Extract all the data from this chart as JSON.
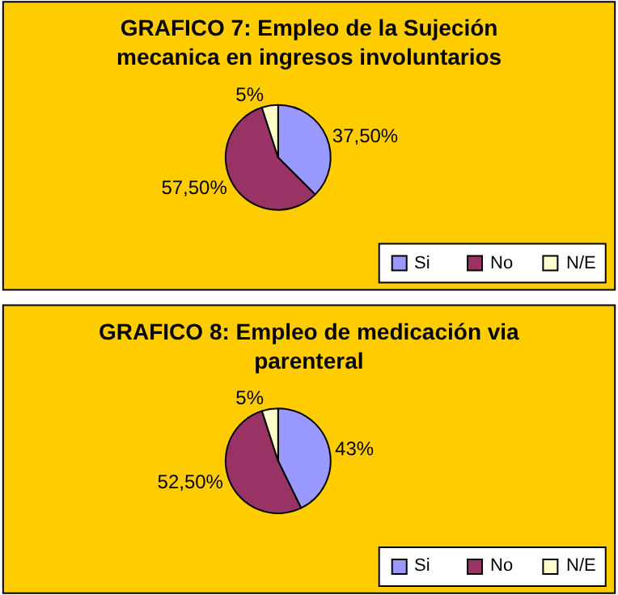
{
  "chart_data": [
    {
      "type": "pie",
      "title": "GRAFICO 7: Empleo de la Sujeción mecanica en ingresos involuntarios",
      "categories": [
        "Si",
        "No",
        "N/E"
      ],
      "values": [
        37.5,
        57.5,
        5
      ],
      "colors": [
        "#9999ff",
        "#993366",
        "#ffffcc"
      ],
      "value_labels": [
        "37,50%",
        "57,50%",
        "5%"
      ],
      "legend": "bottom right"
    },
    {
      "type": "pie",
      "title": "GRAFICO 8: Empleo de medicación via parenteral",
      "categories": [
        "Si",
        "No",
        "N/E"
      ],
      "values": [
        43,
        52.5,
        5
      ],
      "colors": [
        "#9999ff",
        "#993366",
        "#ffffcc"
      ],
      "value_labels": [
        "43%",
        "52,50%",
        "5%"
      ],
      "legend": "bottom right"
    }
  ]
}
